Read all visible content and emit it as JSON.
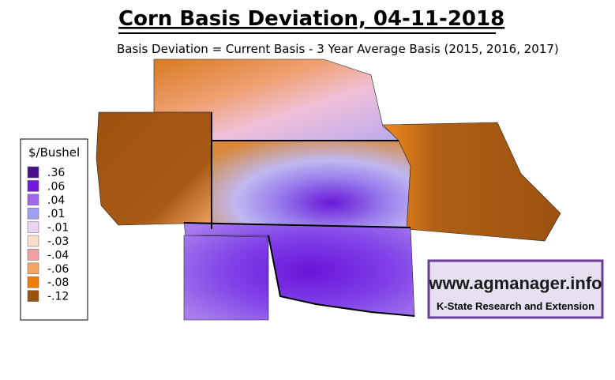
{
  "header": {
    "title": "Corn Basis Deviation, 04-11-2018",
    "subtitle": "Basis Deviation = Current Basis - 3 Year Average Basis (2015, 2016, 2017)"
  },
  "legend": {
    "title": "$/Bushel",
    "items": [
      {
        "label": ".36",
        "color": "#4b0f8c"
      },
      {
        "label": ".06",
        "color": "#7417e0"
      },
      {
        "label": ".04",
        "color": "#a466e8"
      },
      {
        "label": ".01",
        "color": "#9e9ef2"
      },
      {
        "label": "-.01",
        "color": "#ead2f2"
      },
      {
        "label": "-.03",
        "color": "#fadccc"
      },
      {
        "label": "-.04",
        "color": "#f0a0a0"
      },
      {
        "label": "-.06",
        "color": "#f2a462"
      },
      {
        "label": "-.08",
        "color": "#f07c06"
      },
      {
        "label": "-.12",
        "color": "#9c520f"
      }
    ]
  },
  "logo": {
    "url": "www.agmanager.info",
    "org": "K-State Research and Extension"
  }
}
